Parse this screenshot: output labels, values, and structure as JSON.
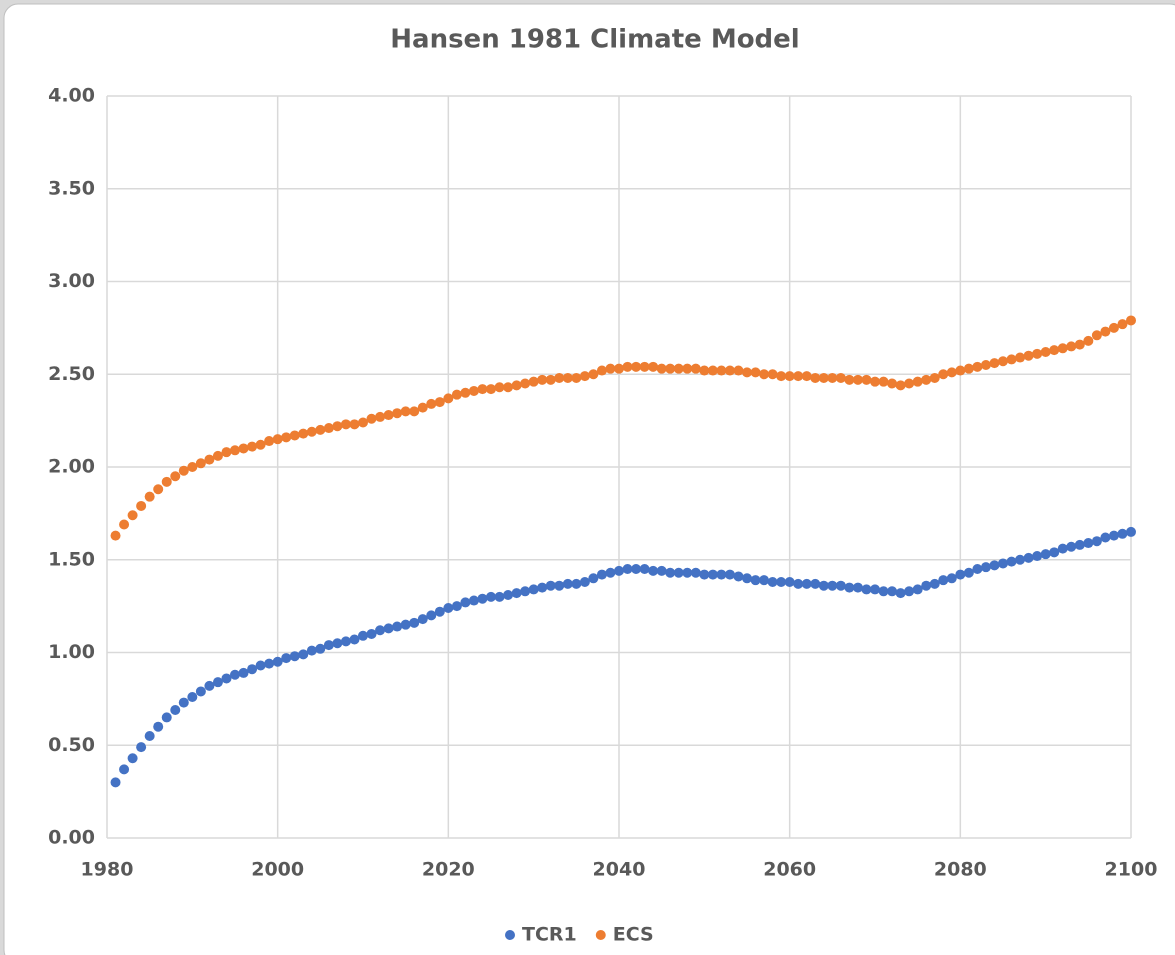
{
  "chart_data": {
    "type": "scatter",
    "title": "Hansen 1981 Climate Model",
    "x": [
      1981,
      1982,
      1983,
      1984,
      1985,
      1986,
      1987,
      1988,
      1989,
      1990,
      1991,
      1992,
      1993,
      1994,
      1995,
      1996,
      1997,
      1998,
      1999,
      2000,
      2001,
      2002,
      2003,
      2004,
      2005,
      2006,
      2007,
      2008,
      2009,
      2010,
      2011,
      2012,
      2013,
      2014,
      2015,
      2016,
      2017,
      2018,
      2019,
      2020,
      2021,
      2022,
      2023,
      2024,
      2025,
      2026,
      2027,
      2028,
      2029,
      2030,
      2031,
      2032,
      2033,
      2034,
      2035,
      2036,
      2037,
      2038,
      2039,
      2040,
      2041,
      2042,
      2043,
      2044,
      2045,
      2046,
      2047,
      2048,
      2049,
      2050,
      2051,
      2052,
      2053,
      2054,
      2055,
      2056,
      2057,
      2058,
      2059,
      2060,
      2061,
      2062,
      2063,
      2064,
      2065,
      2066,
      2067,
      2068,
      2069,
      2070,
      2071,
      2072,
      2073,
      2074,
      2075,
      2076,
      2077,
      2078,
      2079,
      2080,
      2081,
      2082,
      2083,
      2084,
      2085,
      2086,
      2087,
      2088,
      2089,
      2090,
      2091,
      2092,
      2093,
      2094,
      2095,
      2096,
      2097,
      2098,
      2099,
      2100
    ],
    "series": [
      {
        "name": "TCR1",
        "color": "#4472c4",
        "values": [
          0.3,
          0.37,
          0.43,
          0.49,
          0.55,
          0.6,
          0.65,
          0.69,
          0.73,
          0.76,
          0.79,
          0.82,
          0.84,
          0.86,
          0.88,
          0.89,
          0.91,
          0.93,
          0.94,
          0.95,
          0.97,
          0.98,
          0.99,
          1.01,
          1.02,
          1.04,
          1.05,
          1.06,
          1.07,
          1.09,
          1.1,
          1.12,
          1.13,
          1.14,
          1.15,
          1.16,
          1.18,
          1.2,
          1.22,
          1.24,
          1.25,
          1.27,
          1.28,
          1.29,
          1.3,
          1.3,
          1.31,
          1.32,
          1.33,
          1.34,
          1.35,
          1.36,
          1.36,
          1.37,
          1.37,
          1.38,
          1.4,
          1.42,
          1.43,
          1.44,
          1.45,
          1.45,
          1.45,
          1.44,
          1.44,
          1.43,
          1.43,
          1.43,
          1.43,
          1.42,
          1.42,
          1.42,
          1.42,
          1.41,
          1.4,
          1.39,
          1.39,
          1.38,
          1.38,
          1.38,
          1.37,
          1.37,
          1.37,
          1.36,
          1.36,
          1.36,
          1.35,
          1.35,
          1.34,
          1.34,
          1.33,
          1.33,
          1.32,
          1.33,
          1.34,
          1.36,
          1.37,
          1.39,
          1.4,
          1.42,
          1.43,
          1.45,
          1.46,
          1.47,
          1.48,
          1.49,
          1.5,
          1.51,
          1.52,
          1.53,
          1.54,
          1.56,
          1.57,
          1.58,
          1.59,
          1.6,
          1.62,
          1.63,
          1.64,
          1.65
        ]
      },
      {
        "name": "ECS",
        "color": "#ed7d31",
        "values": [
          1.63,
          1.69,
          1.74,
          1.79,
          1.84,
          1.88,
          1.92,
          1.95,
          1.98,
          2.0,
          2.02,
          2.04,
          2.06,
          2.08,
          2.09,
          2.1,
          2.11,
          2.12,
          2.14,
          2.15,
          2.16,
          2.17,
          2.18,
          2.19,
          2.2,
          2.21,
          2.22,
          2.23,
          2.23,
          2.24,
          2.26,
          2.27,
          2.28,
          2.29,
          2.3,
          2.3,
          2.32,
          2.34,
          2.35,
          2.37,
          2.39,
          2.4,
          2.41,
          2.42,
          2.42,
          2.43,
          2.43,
          2.44,
          2.45,
          2.46,
          2.47,
          2.47,
          2.48,
          2.48,
          2.48,
          2.49,
          2.5,
          2.52,
          2.53,
          2.53,
          2.54,
          2.54,
          2.54,
          2.54,
          2.53,
          2.53,
          2.53,
          2.53,
          2.53,
          2.52,
          2.52,
          2.52,
          2.52,
          2.52,
          2.51,
          2.51,
          2.5,
          2.5,
          2.49,
          2.49,
          2.49,
          2.49,
          2.48,
          2.48,
          2.48,
          2.48,
          2.47,
          2.47,
          2.47,
          2.46,
          2.46,
          2.45,
          2.44,
          2.45,
          2.46,
          2.47,
          2.48,
          2.5,
          2.51,
          2.52,
          2.53,
          2.54,
          2.55,
          2.56,
          2.57,
          2.58,
          2.59,
          2.6,
          2.61,
          2.62,
          2.63,
          2.64,
          2.65,
          2.66,
          2.68,
          2.71,
          2.73,
          2.75,
          2.77,
          2.79
        ]
      }
    ],
    "xlim": [
      1980,
      2100
    ],
    "xticks": [
      1980,
      2000,
      2020,
      2040,
      2060,
      2080,
      2100
    ],
    "ylim": [
      0,
      4
    ],
    "yticks": [
      {
        "value": 0,
        "label": "0.00"
      },
      {
        "value": 0.5,
        "label": "0.50"
      },
      {
        "value": 1,
        "label": "1.00"
      },
      {
        "value": 1.5,
        "label": "1.50"
      },
      {
        "value": 2,
        "label": "2.00"
      },
      {
        "value": 2.5,
        "label": "2.50"
      },
      {
        "value": 3,
        "label": "3.00"
      },
      {
        "value": 3.5,
        "label": "3.50"
      },
      {
        "value": 4,
        "label": "4.00"
      }
    ],
    "grid": true,
    "legend": "bottom"
  }
}
